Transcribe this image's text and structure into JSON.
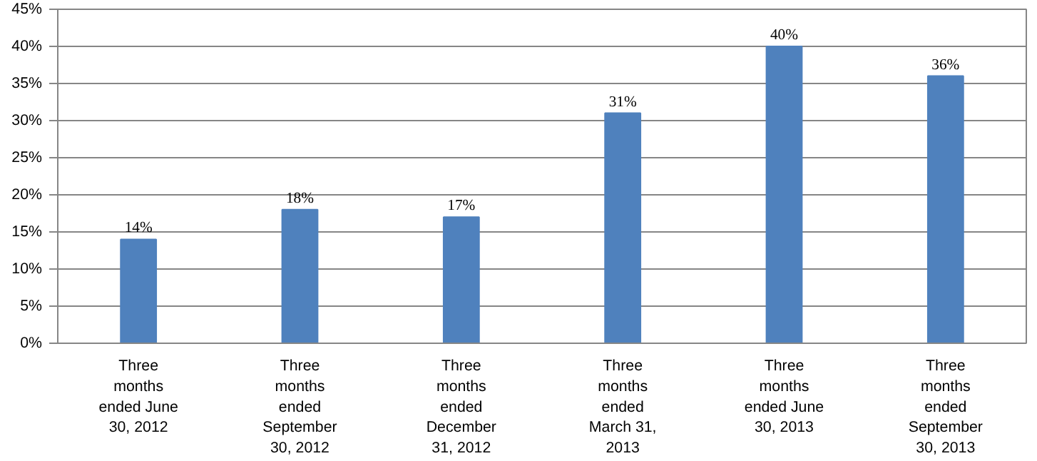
{
  "chart_data": {
    "type": "bar",
    "categories": [
      "Three months ended June 30, 2012",
      "Three months ended September 30, 2012",
      "Three months ended December 31, 2012",
      "Three months ended March 31, 2013",
      "Three months ended June 30, 2013",
      "Three months ended September 30, 2013"
    ],
    "values": [
      14,
      18,
      17,
      31,
      40,
      36
    ],
    "value_labels": [
      "14%",
      "18%",
      "17%",
      "31%",
      "40%",
      "36%"
    ],
    "color": "#4f81bd",
    "ylim": [
      0,
      45
    ],
    "yticks": [
      {
        "value": 0,
        "label": "0%"
      },
      {
        "value": 5,
        "label": "5%"
      },
      {
        "value": 10,
        "label": "10%"
      },
      {
        "value": 15,
        "label": "15%"
      },
      {
        "value": 20,
        "label": "20%"
      },
      {
        "value": 25,
        "label": "25%"
      },
      {
        "value": 30,
        "label": "30%"
      },
      {
        "value": 35,
        "label": "35%"
      },
      {
        "value": 40,
        "label": "40%"
      },
      {
        "value": 45,
        "label": "45%"
      }
    ],
    "grid": "y"
  }
}
